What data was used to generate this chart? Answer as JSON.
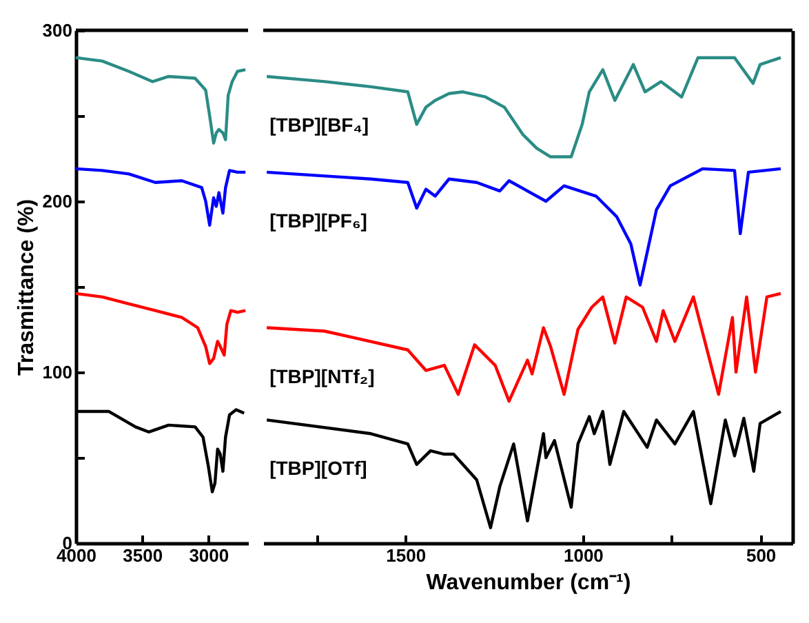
{
  "chart_data": [
    {
      "type": "line",
      "ylabel": "Trasmittance (%)",
      "xlim": [
        4000,
        2700
      ],
      "xticks": [
        4000,
        3500,
        3000
      ],
      "ylim": [
        0,
        300
      ],
      "yticks": [
        0,
        {
          "value": 50,
          "label": null
        },
        100,
        {
          "value": 150,
          "label": null
        },
        200,
        {
          "value": 250,
          "label": null
        },
        300
      ],
      "grid": false,
      "series": [
        {
          "color": "#2a8c85",
          "x": [
            4000,
            3800,
            3600,
            3420,
            3300,
            3100,
            3020,
            2990,
            2960,
            2940,
            2920,
            2890,
            2870,
            2850,
            2820,
            2780,
            2720
          ],
          "values": [
            284,
            282,
            276,
            270,
            273,
            272,
            265,
            250,
            234,
            240,
            242,
            240,
            236,
            262,
            270,
            276,
            277
          ]
        },
        {
          "color": "#0000ff",
          "x": [
            4000,
            3800,
            3600,
            3400,
            3200,
            3050,
            3020,
            2990,
            2960,
            2940,
            2920,
            2890,
            2870,
            2840,
            2780,
            2720
          ],
          "values": [
            219,
            218,
            216,
            211,
            212,
            208,
            200,
            186,
            202,
            197,
            205,
            193,
            208,
            218,
            217,
            217
          ]
        },
        {
          "color": "#ff0000",
          "x": [
            4000,
            3800,
            3600,
            3400,
            3200,
            3080,
            3020,
            2990,
            2960,
            2930,
            2910,
            2880,
            2860,
            2830,
            2780,
            2720
          ],
          "values": [
            146,
            144,
            140,
            136,
            132,
            126,
            115,
            105,
            108,
            118,
            115,
            110,
            128,
            136,
            135,
            136
          ]
        },
        {
          "color": "#000000",
          "x": [
            4000,
            3750,
            3550,
            3450,
            3300,
            3100,
            3040,
            3000,
            2970,
            2950,
            2930,
            2910,
            2890,
            2870,
            2840,
            2790,
            2730
          ],
          "values": [
            77,
            77,
            68,
            65,
            69,
            68,
            62,
            45,
            30,
            35,
            55,
            52,
            42,
            62,
            75,
            78,
            76
          ]
        }
      ]
    },
    {
      "type": "line",
      "xlabel": "Wavenumber (cm⁻¹)",
      "xlim": [
        1900,
        410
      ],
      "xticks": [
        {
          "value": 1750,
          "label": null
        },
        1500,
        1000,
        {
          "value": 750,
          "label": null
        },
        500
      ],
      "ylim": [
        0,
        300
      ],
      "yticks": [
        0,
        100,
        200,
        300
      ],
      "tick_labels": "x",
      "grid": false,
      "series": [
        {
          "name": "[TBP][BF₄]",
          "color": "#2a8c85",
          "x": [
            1890,
            1727,
            1597,
            1493,
            1468,
            1442,
            1416,
            1377,
            1338,
            1274,
            1221,
            1169,
            1130,
            1091,
            1033,
            1002,
            982,
            944,
            910,
            858,
            825,
            780,
            722,
            676,
            573,
            521,
            501,
            443
          ],
          "values": [
            273,
            270,
            267,
            264,
            245,
            255,
            259,
            263,
            264,
            261,
            255,
            239,
            231,
            226,
            226,
            245,
            264,
            277,
            259,
            280,
            264,
            270,
            261,
            284,
            284,
            269,
            280,
            284
          ]
        },
        {
          "name": "[TBP][PF₆]",
          "color": "#0000ff",
          "x": [
            1890,
            1597,
            1493,
            1468,
            1442,
            1416,
            1377,
            1299,
            1234,
            1208,
            1104,
            1053,
            963,
            905,
            865,
            839,
            793,
            754,
            663,
            573,
            557,
            534,
            443
          ],
          "values": [
            217,
            213,
            211,
            196,
            207,
            203,
            213,
            211,
            206,
            212,
            200,
            209,
            203,
            191,
            175,
            151,
            195,
            209,
            219,
            218,
            181,
            217,
            219
          ]
        },
        {
          "name": "[TBP][NTf₂]",
          "color": "#ff0000",
          "x": [
            1890,
            1727,
            1493,
            1442,
            1390,
            1351,
            1305,
            1247,
            1208,
            1156,
            1143,
            1111,
            1091,
            1053,
            1014,
            975,
            944,
            910,
            878,
            832,
            793,
            774,
            741,
            689,
            618,
            579,
            569,
            539,
            514,
            482,
            443
          ],
          "values": [
            126,
            124,
            113,
            101,
            104,
            87,
            116,
            104,
            83,
            107,
            99,
            126,
            115,
            87,
            125,
            138,
            144,
            117,
            144,
            138,
            118,
            136,
            118,
            144,
            87,
            132,
            100,
            144,
            100,
            144,
            146
          ]
        },
        {
          "name": "[TBP][OTf]",
          "color": "#000000",
          "x": [
            1890,
            1597,
            1493,
            1468,
            1429,
            1390,
            1364,
            1299,
            1260,
            1234,
            1195,
            1156,
            1111,
            1104,
            1080,
            1033,
            1014,
            982,
            968,
            944,
            924,
            885,
            819,
            793,
            741,
            689,
            640,
            599,
            573,
            547,
            519,
            501,
            443
          ],
          "values": [
            72,
            64,
            58,
            46,
            54,
            52,
            52,
            37,
            9,
            33,
            58,
            13,
            64,
            50,
            60,
            21,
            58,
            74,
            64,
            77,
            46,
            77,
            56,
            72,
            58,
            77,
            23,
            72,
            51,
            73,
            42,
            70,
            77
          ]
        }
      ]
    }
  ]
}
